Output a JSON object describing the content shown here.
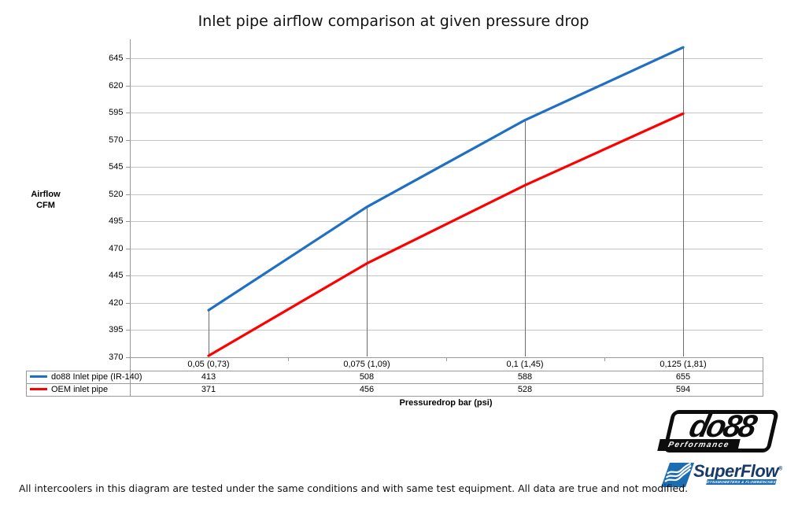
{
  "title": "Inlet pipe airflow comparison at given pressure drop",
  "y_axis": {
    "label_line1": "Airflow",
    "label_line2": "CFM"
  },
  "x_axis": {
    "label": "Pressuredrop bar (psi)"
  },
  "chart_data": {
    "type": "line",
    "categories": [
      "0,05 (0,73)",
      "0,075 (1,09)",
      "0,1 (1,45)",
      "0,125 (1,81)"
    ],
    "series": [
      {
        "name": "do88 Inlet pipe (IR-140)",
        "color": "#1f6fc4",
        "values": [
          413,
          508,
          588,
          655
        ]
      },
      {
        "name": "OEM inlet pipe",
        "color": "#fe0000",
        "values": [
          371,
          456,
          528,
          594
        ]
      }
    ],
    "title": "Inlet pipe airflow comparison at given pressure drop",
    "xlabel": "Pressuredrop bar (psi)",
    "ylabel": "Airflow CFM",
    "ylim": [
      370,
      645
    ],
    "ytick_step": 25,
    "grid": true,
    "drop_lines": true,
    "legend_position": "table-left",
    "data_table_shown": true
  },
  "footnote": "All intercoolers in this diagram are tested under the same conditions and with same test equipment. All data are true and not modified.",
  "logos": {
    "do88": {
      "text": "do88",
      "subtext": "Performance"
    },
    "superflow": {
      "text": "SuperFlow",
      "reg_mark": "®",
      "subtext": "DYNAMOMETERS & FLOWBENCHES"
    }
  },
  "colors": {
    "series_blue": "#1f6fc4",
    "series_red": "#fe0000",
    "gridline": "#c4c4c4",
    "axis_border": "#999999",
    "dropline": "#6b6b6b",
    "logo_blue": "#1d6db5",
    "logo_navy": "#173a68"
  }
}
